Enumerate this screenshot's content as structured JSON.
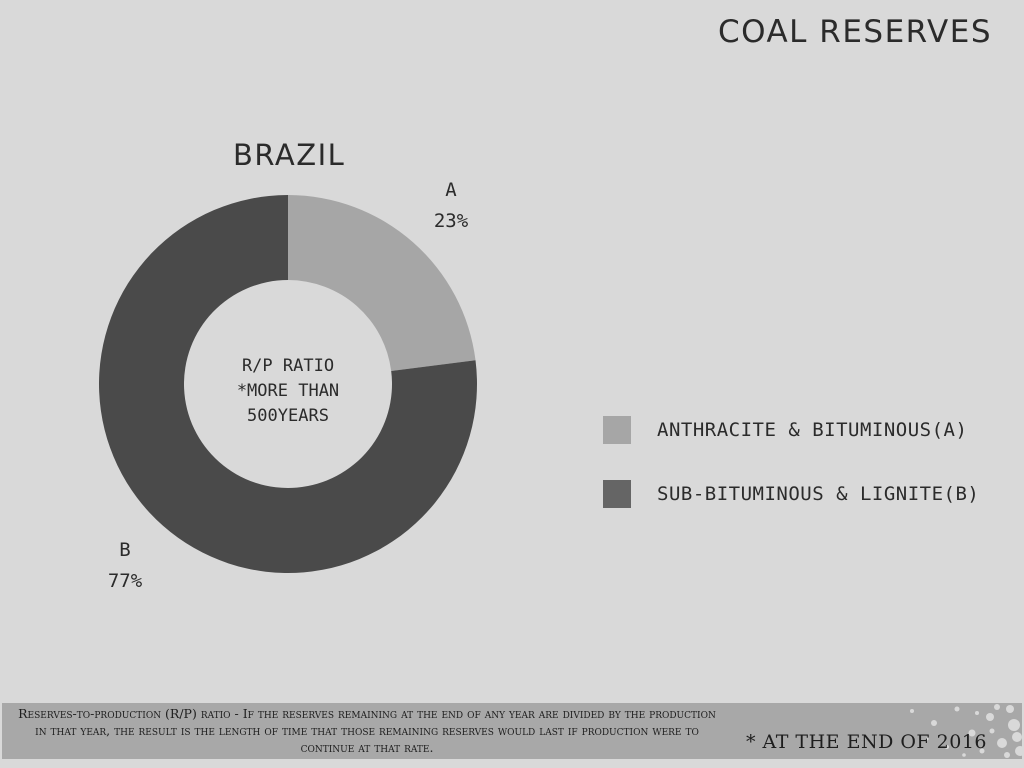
{
  "page_title": "COAL RESERVES",
  "chart_data": {
    "type": "pie",
    "variant": "donut",
    "title": "BRAZIL",
    "center_text": [
      "R/P RATIO",
      "*MORE THAN",
      "500YEARS"
    ],
    "slices": [
      {
        "label": "A",
        "value": 23,
        "value_label": "23%",
        "color": "#a6a6a6"
      },
      {
        "label": "B",
        "value": 77,
        "value_label": "77%",
        "color": "#4a4a4a"
      }
    ],
    "legend": {
      "placement": "right",
      "entries": [
        {
          "label": "ANTHRACITE & BITUMINOUS(A)",
          "color": "#a6a6a6"
        },
        {
          "label": "SUB-BITUMINOUS & LIGNITE(B)",
          "color": "#656565"
        }
      ]
    }
  },
  "footnote": "Reserves-to-production (R/P) ratio - If the reserves remaining at the end of any year are divided by the production in that year, the result is the length of time that those remaining reserves would last if production were to continue at that rate.",
  "date_note": "* AT THE END OF 2016"
}
